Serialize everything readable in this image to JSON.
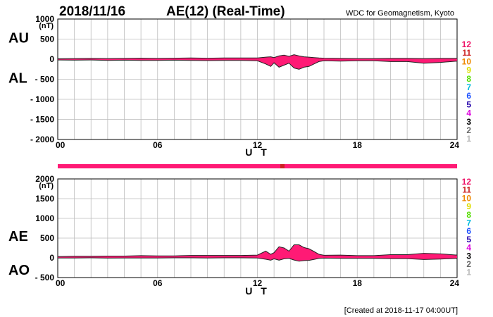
{
  "header": {
    "date": "2018/11/16",
    "title": "AE(12) (Real-Time)",
    "source": "WDC for Geomagnetism, Kyoto"
  },
  "footer": {
    "created": "[Created at 2018-11-17 04:00UT]"
  },
  "legend_colors": {
    "12": "#ee1166",
    "11": "#cc2222",
    "10": "#ee8800",
    "9": "#dddd00",
    "8": "#55dd00",
    "7": "#00bbdd",
    "6": "#2255ff",
    "5": "#2200aa",
    "4": "#dd00dd",
    "3": "#000000",
    "2": "#666666",
    "1": "#bbbbbb"
  },
  "fill_color": "#ff1a75",
  "chart_data": [
    {
      "type": "area",
      "side_labels": [
        "AU",
        "AL"
      ],
      "unit": "(nT)",
      "xlabel": "U T",
      "xlim": [
        0,
        24
      ],
      "ylim": [
        -2000,
        1000
      ],
      "x_ticks": [
        "00",
        "06",
        "12",
        "18",
        "24"
      ],
      "y_ticks": [
        "1000",
        "500",
        "0",
        "- 500",
        "- 1000",
        "- 1500",
        "- 2000"
      ],
      "legend": [
        "12",
        "11",
        "10",
        "9",
        "8",
        "7",
        "6",
        "5",
        "4",
        "3",
        "2",
        "1"
      ],
      "grid": true,
      "series": [
        {
          "name": "AU",
          "x": [
            0,
            1,
            2,
            3,
            4,
            5,
            6,
            7,
            8,
            9,
            10,
            11,
            12,
            12.5,
            12.8,
            13,
            13.3,
            13.6,
            13.9,
            14.2,
            14.5,
            14.8,
            15.1,
            15.4,
            15.7,
            16,
            17,
            18,
            19,
            20,
            21,
            22,
            23,
            24
          ],
          "values": [
            10,
            15,
            20,
            15,
            20,
            25,
            20,
            25,
            30,
            25,
            30,
            30,
            30,
            50,
            60,
            40,
            80,
            100,
            70,
            110,
            80,
            60,
            50,
            40,
            30,
            25,
            20,
            15,
            15,
            20,
            20,
            15,
            20,
            20
          ]
        },
        {
          "name": "AL",
          "x": [
            0,
            1,
            2,
            3,
            4,
            5,
            6,
            7,
            8,
            9,
            10,
            11,
            12,
            12.5,
            12.8,
            13,
            13.3,
            13.6,
            13.9,
            14.2,
            14.5,
            14.8,
            15.1,
            15.4,
            15.7,
            16,
            17,
            18,
            19,
            20,
            21,
            22,
            23,
            24
          ],
          "values": [
            -20,
            -25,
            -20,
            -30,
            -25,
            -30,
            -30,
            -25,
            -30,
            -35,
            -30,
            -30,
            -40,
            -120,
            -180,
            -90,
            -200,
            -150,
            -100,
            -220,
            -250,
            -200,
            -180,
            -120,
            -60,
            -40,
            -50,
            -40,
            -40,
            -60,
            -60,
            -100,
            -80,
            -50
          ]
        }
      ]
    },
    {
      "type": "area",
      "side_labels": [
        "AE",
        "AO"
      ],
      "unit": "(nT)",
      "xlabel": "U T",
      "xlim": [
        0,
        24
      ],
      "ylim": [
        -500,
        2000
      ],
      "x_ticks": [
        "00",
        "06",
        "12",
        "18",
        "24"
      ],
      "y_ticks": [
        "2000",
        "1500",
        "1000",
        "500",
        "0",
        "- 500"
      ],
      "legend": [
        "12",
        "11",
        "10",
        "9",
        "8",
        "7",
        "6",
        "5",
        "4",
        "3",
        "2",
        "1"
      ],
      "grid": true,
      "series": [
        {
          "name": "AE",
          "x": [
            0,
            1,
            2,
            3,
            4,
            5,
            6,
            7,
            8,
            9,
            10,
            11,
            12,
            12.5,
            12.8,
            13,
            13.3,
            13.6,
            13.9,
            14.2,
            14.5,
            14.8,
            15.1,
            15.4,
            15.7,
            16,
            17,
            18,
            19,
            20,
            21,
            22,
            23,
            24
          ],
          "values": [
            30,
            40,
            40,
            45,
            45,
            55,
            50,
            50,
            60,
            60,
            60,
            60,
            70,
            170,
            90,
            130,
            280,
            250,
            170,
            330,
            330,
            260,
            230,
            160,
            90,
            65,
            70,
            55,
            55,
            80,
            80,
            115,
            100,
            70
          ]
        },
        {
          "name": "AO",
          "x": [
            0,
            1,
            2,
            3,
            4,
            5,
            6,
            7,
            8,
            9,
            10,
            11,
            12,
            12.5,
            12.8,
            13,
            13.3,
            13.6,
            13.9,
            14.2,
            14.5,
            14.8,
            15.1,
            15.4,
            15.7,
            16,
            17,
            18,
            19,
            20,
            21,
            22,
            23,
            24
          ],
          "values": [
            -5,
            -5,
            0,
            -7,
            -3,
            -3,
            -5,
            0,
            0,
            -5,
            0,
            0,
            -5,
            -35,
            -60,
            -25,
            -60,
            -25,
            -15,
            -55,
            -85,
            -70,
            -65,
            -40,
            -15,
            -8,
            -15,
            -12,
            -12,
            -20,
            -20,
            -42,
            -30,
            -15
          ]
        }
      ]
    }
  ]
}
